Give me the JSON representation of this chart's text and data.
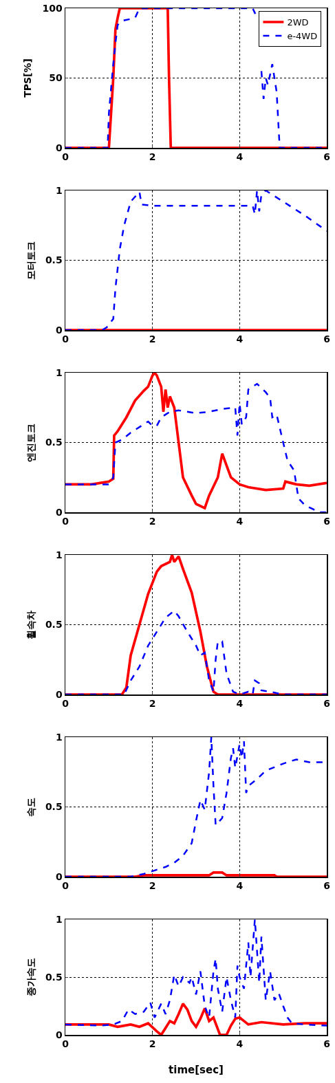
{
  "chart_data": [
    {
      "type": "line",
      "ylabel": "TPS[%]",
      "xlim": [
        0,
        6
      ],
      "ylim": [
        0,
        100
      ],
      "xticks": [
        0,
        2,
        4,
        6
      ],
      "yticks": [
        0,
        50,
        100
      ],
      "grid": true,
      "legend": "top right",
      "series": [
        {
          "name": "2WD",
          "color": "#ff0000",
          "line_style": "solid",
          "x": [
            0,
            1.0,
            1.1,
            1.15,
            1.2,
            1.25,
            2.35,
            2.38,
            2.42,
            6
          ],
          "values": [
            0,
            0,
            50,
            85,
            93,
            100,
            100,
            50,
            0,
            0
          ]
        },
        {
          "name": "e-4WD",
          "color": "#0000ff",
          "line_style": "dashed",
          "x": [
            0,
            0.97,
            1.0,
            1.1,
            1.15,
            1.2,
            1.3,
            1.6,
            1.7,
            4.3,
            4.36,
            4.45,
            4.5,
            4.55,
            4.6,
            4.65,
            4.75,
            4.85,
            4.92,
            6
          ],
          "values": [
            0,
            0,
            25,
            60,
            75,
            88,
            91,
            93,
            100,
            100,
            96,
            null,
            55,
            35,
            50,
            45,
            60,
            40,
            0,
            0
          ]
        }
      ]
    },
    {
      "type": "line",
      "ylabel": "모터토크",
      "xlim": [
        0,
        6
      ],
      "ylim": [
        0,
        1
      ],
      "xticks": [
        0,
        2,
        4,
        6
      ],
      "yticks": [
        0,
        0.5,
        1
      ],
      "grid": true,
      "legend": false,
      "series": [
        {
          "color": "#ff0000",
          "line_style": "solid",
          "x": [
            0,
            6
          ],
          "values": [
            0,
            0
          ]
        },
        {
          "color": "#0000ff",
          "line_style": "dashed",
          "x": [
            0,
            0.85,
            0.95,
            1.1,
            1.15,
            1.25,
            1.35,
            1.5,
            1.7,
            1.75,
            2,
            4.3,
            4.35,
            4.4,
            4.45,
            4.5,
            4.6,
            5,
            5.5,
            6
          ],
          "values": [
            0,
            0,
            0.02,
            0.08,
            0.3,
            0.58,
            0.75,
            0.92,
            0.99,
            0.9,
            0.89,
            0.89,
            0.83,
            1.0,
            0.85,
            0.97,
            1.0,
            0.92,
            0.82,
            0.71
          ]
        }
      ]
    },
    {
      "type": "line",
      "ylabel": "엔진토크",
      "xlim": [
        0,
        6
      ],
      "ylim": [
        0,
        1
      ],
      "xticks": [
        0,
        2,
        4,
        6
      ],
      "yticks": [
        0,
        0.5,
        1
      ],
      "grid": true,
      "legend": false,
      "series": [
        {
          "color": "#ff0000",
          "line_style": "solid",
          "x": [
            0,
            0.6,
            0.8,
            1.0,
            1.1,
            1.12,
            1.2,
            1.4,
            1.6,
            1.8,
            1.9,
            2.0,
            2.05,
            2.1,
            2.2,
            2.25,
            2.3,
            2.35,
            2.4,
            2.5,
            2.6,
            2.7,
            2.9,
            3.0,
            3.2,
            3.3,
            3.5,
            3.6,
            3.8,
            4.0,
            4.2,
            4.6,
            5.0,
            5.05,
            5.3,
            5.6,
            6
          ],
          "values": [
            0.2,
            0.2,
            0.21,
            0.22,
            0.24,
            0.55,
            0.58,
            0.68,
            0.8,
            0.87,
            0.9,
            0.98,
            1.0,
            0.98,
            0.9,
            0.72,
            0.88,
            0.75,
            0.83,
            0.75,
            0.5,
            0.25,
            0.12,
            0.06,
            0.03,
            0.12,
            0.25,
            0.42,
            0.25,
            0.2,
            0.18,
            0.16,
            0.17,
            0.22,
            0.2,
            0.19,
            0.21
          ]
        },
        {
          "color": "#0000ff",
          "line_style": "dashed",
          "x": [
            0,
            1.0,
            1.1,
            1.15,
            1.3,
            1.5,
            1.8,
            1.9,
            2.0,
            2.1,
            2.2,
            2.3,
            2.4,
            2.6,
            3.0,
            3.3,
            3.6,
            3.9,
            3.95,
            4.0,
            4.05,
            4.15,
            4.2,
            4.4,
            4.6,
            4.7,
            4.75,
            4.85,
            5.0,
            5.1,
            5.25,
            5.35,
            5.5,
            5.7,
            5.8,
            6
          ],
          "values": [
            0.2,
            0.2,
            0.25,
            0.5,
            0.52,
            0.57,
            0.63,
            0.65,
            0.62,
            0.62,
            0.68,
            0.7,
            0.72,
            0.73,
            0.71,
            0.72,
            0.74,
            0.75,
            0.55,
            0.78,
            0.63,
            0.68,
            0.88,
            0.92,
            0.86,
            0.82,
            0.68,
            0.7,
            0.5,
            0.37,
            0.3,
            0.1,
            0.05,
            0.02,
            0,
            0
          ]
        }
      ]
    },
    {
      "type": "line",
      "ylabel": "휠속차",
      "xlim": [
        0,
        6
      ],
      "ylim": [
        0,
        1
      ],
      "xticks": [
        0,
        2,
        4,
        6
      ],
      "yticks": [
        0,
        0.5,
        1
      ],
      "grid": true,
      "legend": false,
      "series": [
        {
          "color": "#ff0000",
          "line_style": "solid",
          "x": [
            0,
            1.3,
            1.4,
            1.5,
            1.7,
            1.9,
            2.1,
            2.2,
            2.4,
            2.45,
            2.5,
            2.6,
            2.7,
            2.9,
            3.1,
            3.25,
            3.4,
            3.5,
            6
          ],
          "values": [
            0,
            0,
            0.05,
            0.28,
            0.5,
            0.72,
            0.88,
            0.92,
            0.95,
            1.0,
            0.95,
            0.99,
            0.9,
            0.73,
            0.45,
            0.2,
            0.02,
            0,
            0
          ]
        },
        {
          "color": "#0000ff",
          "line_style": "dashed",
          "x": [
            0,
            1.35,
            1.5,
            1.7,
            1.9,
            2.1,
            2.3,
            2.5,
            2.6,
            2.8,
            3.0,
            3.1,
            3.2,
            3.3,
            3.4,
            3.45,
            3.5,
            3.6,
            3.7,
            3.85,
            4.0,
            4.2,
            4.3,
            4.35,
            4.45,
            4.5,
            4.7,
            5,
            6
          ],
          "values": [
            0,
            0,
            0.1,
            0.2,
            0.35,
            0.45,
            0.55,
            0.6,
            0.56,
            0.45,
            0.35,
            0.28,
            0.3,
            0.1,
            0.02,
            0.25,
            0.38,
            0.38,
            0.15,
            0.02,
            0,
            0.02,
            0,
            0.1,
            0.08,
            0.03,
            0.02,
            0,
            0
          ]
        }
      ]
    },
    {
      "type": "line",
      "ylabel": "속도",
      "xlim": [
        0,
        6
      ],
      "ylim": [
        0,
        1
      ],
      "xticks": [
        0,
        2,
        4,
        6
      ],
      "yticks": [
        0,
        0.5,
        1
      ],
      "grid": true,
      "legend": false,
      "series": [
        {
          "color": "#ff0000",
          "line_style": "solid",
          "x": [
            0,
            1.6,
            1.8,
            3.3,
            3.4,
            3.6,
            3.7,
            4.8,
            4.85,
            6
          ],
          "values": [
            0,
            0,
            0.01,
            0.01,
            0.03,
            0.03,
            0.01,
            0.01,
            0,
            0
          ]
        },
        {
          "color": "#0000ff",
          "line_style": "dashed",
          "x": [
            0,
            1.5,
            1.8,
            2.0,
            2.3,
            2.5,
            2.7,
            2.9,
            3.0,
            3.1,
            3.2,
            3.3,
            3.35,
            3.4,
            3.45,
            3.6,
            3.7,
            3.8,
            3.85,
            3.9,
            4.0,
            4.05,
            4.1,
            4.15,
            4.2,
            4.4,
            4.6,
            5.0,
            5.3,
            5.6,
            6
          ],
          "values": [
            0,
            0,
            0.02,
            0.04,
            0.07,
            0.1,
            0.15,
            0.24,
            0.4,
            0.55,
            0.48,
            0.75,
            1.0,
            0.65,
            0.37,
            0.42,
            0.6,
            0.85,
            0.92,
            0.78,
            0.95,
            0.85,
            0.97,
            0.6,
            0.65,
            0.7,
            0.76,
            0.81,
            0.84,
            0.82,
            0.82
          ]
        }
      ]
    },
    {
      "type": "line",
      "ylabel": "종가속도",
      "xlabel": "time[sec]",
      "xlim": [
        0,
        6
      ],
      "ylim": [
        0,
        1
      ],
      "xticks": [
        0,
        2,
        4,
        6
      ],
      "yticks": [
        0,
        0.5,
        1
      ],
      "grid": true,
      "legend": false,
      "series": [
        {
          "color": "#ff0000",
          "line_style": "solid",
          "x": [
            0,
            0.6,
            1,
            1.2,
            1.5,
            1.7,
            1.9,
            2.1,
            2.2,
            2.3,
            2.4,
            2.5,
            2.6,
            2.7,
            2.8,
            2.9,
            3.0,
            3.1,
            3.2,
            3.3,
            3.4,
            3.5,
            3.55,
            3.7,
            3.8,
            3.9,
            4.0,
            4.2,
            4.5,
            5.0,
            5.5,
            6
          ],
          "values": [
            0.09,
            0.09,
            0.09,
            0.07,
            0.09,
            0.07,
            0.1,
            0.03,
            0.0,
            0.06,
            0.12,
            0.1,
            0.18,
            0.27,
            0.22,
            0.12,
            0.07,
            0.14,
            0.23,
            0.12,
            0.15,
            0.05,
            0,
            0,
            0.08,
            0.14,
            0.15,
            0.09,
            0.11,
            0.09,
            0.1,
            0.1
          ]
        },
        {
          "color": "#0000ff",
          "line_style": "dashed",
          "x": [
            0,
            0.8,
            1.1,
            1.3,
            1.45,
            1.6,
            1.8,
            1.95,
            2.05,
            2.2,
            2.3,
            2.4,
            2.5,
            2.6,
            2.7,
            2.85,
            2.9,
            3.0,
            3.1,
            3.2,
            3.3,
            3.4,
            3.45,
            3.5,
            3.6,
            3.7,
            3.8,
            3.9,
            3.95,
            4.0,
            4.1,
            4.2,
            4.25,
            4.35,
            4.45,
            4.5,
            4.6,
            4.7,
            4.8,
            4.9,
            5.0,
            5.1,
            5.2,
            5.5,
            6
          ],
          "values": [
            0.09,
            0.08,
            0.09,
            0.12,
            0.22,
            0.18,
            0.2,
            0.28,
            0.15,
            0.27,
            0.18,
            0.3,
            0.52,
            0.42,
            0.5,
            0.45,
            0.5,
            0.35,
            0.55,
            0.25,
            0.15,
            0.55,
            0.66,
            0.4,
            0.2,
            0.5,
            0.3,
            0.15,
            0.6,
            0.5,
            0.4,
            0.8,
            0.5,
            1.0,
            0.45,
            0.85,
            0.3,
            0.55,
            0.3,
            0.36,
            0.25,
            0.15,
            0.1,
            0.09,
            0.08
          ]
        }
      ]
    }
  ]
}
